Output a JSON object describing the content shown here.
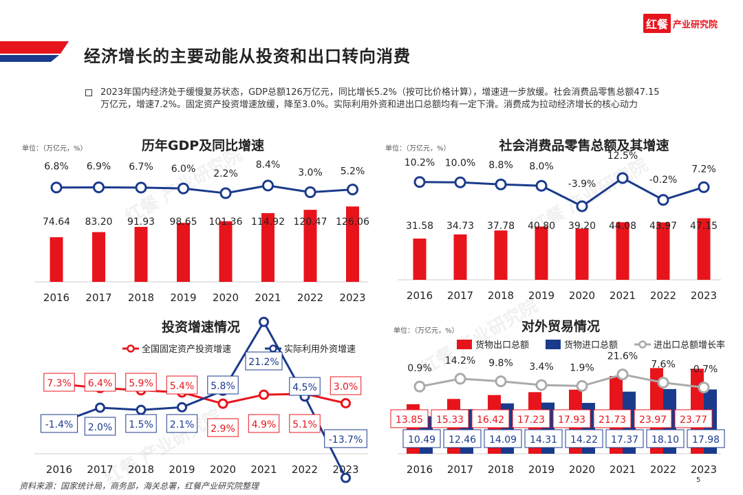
{
  "page": {
    "title": "经济增长的主要动能从投资和出口转向消费",
    "logo_mark": "红餐",
    "logo_name": "产业研究院",
    "summary": "2023年国内经济处于缓慢复苏状态，GDP总额126万亿元，同比增长5.2%（按可比价格计算），增速进一步放缓。社会消费品零售总额47.15万亿元，增速7.2%。固定资产投资增速放缓，降至3.0%。实际利用外资和进出口总额均有一定下滑。消费成为拉动经济增长的核心动力",
    "source": "资料来源：国家统计局，商务部，海关总署，红餐产业研究院整理",
    "page_number": "5",
    "watermark": "红餐 产业研究院"
  },
  "colors": {
    "red": "#e8141c",
    "navy": "#1a3a8c",
    "gray": "#aaaaaa",
    "text": "#222222",
    "axis": "#cccccc"
  },
  "chart_data": [
    {
      "id": "gdp",
      "type": "bar+line",
      "title": "历年GDP及同比增速",
      "unit": "单位：（万亿元，%）",
      "categories": [
        "2016",
        "2017",
        "2018",
        "2019",
        "2020",
        "2021",
        "2022",
        "2023"
      ],
      "series": [
        {
          "values": [
            74.64,
            83.2,
            91.93,
            98.65,
            101.36,
            114.92,
            120.47,
            126.06
          ],
          "labels": [
            "74.64",
            "83.20",
            "91.93",
            "98.65",
            "101.36",
            "114.92",
            "120.47",
            "126.06"
          ],
          "color": "#e8141c"
        },
        {
          "values": [
            6.8,
            6.9,
            6.7,
            6.0,
            2.2,
            8.4,
            3.0,
            5.2
          ],
          "labels": [
            "6.8%",
            "6.9%",
            "6.7%",
            "6.0%",
            "2.2%",
            "8.4%",
            "3.0%",
            "5.2%"
          ],
          "color": "#1a3a8c"
        }
      ]
    },
    {
      "id": "retail",
      "type": "bar+line",
      "title": "社会消费品零售总额及其增速",
      "unit": "单位：（万亿元，%）",
      "categories": [
        "2016",
        "2017",
        "2018",
        "2019",
        "2020",
        "2021",
        "2022",
        "2023"
      ],
      "series": [
        {
          "values": [
            31.58,
            34.73,
            37.78,
            40.8,
            39.2,
            44.08,
            43.97,
            47.15
          ],
          "labels": [
            "31.58",
            "34.73",
            "37.78",
            "40.80",
            "39.20",
            "44.08",
            "43.97",
            "47.15"
          ],
          "color": "#e8141c"
        },
        {
          "values": [
            10.2,
            10.0,
            8.8,
            8.0,
            -3.9,
            12.5,
            -0.2,
            7.2
          ],
          "labels": [
            "10.2%",
            "10.0%",
            "8.8%",
            "8.0%",
            "-3.9%",
            "12.5%",
            "-0.2%",
            "7.2%"
          ],
          "color": "#1a3a8c"
        }
      ]
    },
    {
      "id": "investment",
      "type": "line",
      "title": "投资增速情况",
      "categories": [
        "2016",
        "2017",
        "2018",
        "2019",
        "2020",
        "2021",
        "2022",
        "2023"
      ],
      "series": [
        {
          "name": "全国固定资产投资增速",
          "values": [
            7.3,
            6.4,
            5.9,
            5.4,
            2.9,
            4.9,
            5.1,
            3.0
          ],
          "labels": [
            "7.3%",
            "6.4%",
            "5.9%",
            "5.4%",
            "2.9%",
            "4.9%",
            "5.1%",
            "3.0%"
          ],
          "color": "#e8141c"
        },
        {
          "name": "实际利用外资增速",
          "values": [
            -1.4,
            2.0,
            1.5,
            2.1,
            5.8,
            21.2,
            4.5,
            -13.7
          ],
          "labels": [
            "-1.4%",
            "2.0%",
            "1.5%",
            "2.1%",
            "5.8%",
            "21.2%",
            "4.5%",
            "-13.7%"
          ],
          "color": "#1a3a8c"
        }
      ]
    },
    {
      "id": "trade",
      "type": "bar+line",
      "title": "对外贸易情况",
      "unit": "单位：（万亿元，%）",
      "categories": [
        "2016",
        "2017",
        "2018",
        "2019",
        "2020",
        "2021",
        "2022",
        "2023"
      ],
      "series": [
        {
          "name": "货物出口总额",
          "values": [
            13.85,
            15.33,
            16.42,
            17.23,
            17.93,
            21.73,
            23.97,
            23.77
          ],
          "labels": [
            "13.85",
            "15.33",
            "16.42",
            "17.23",
            "17.93",
            "21.73",
            "23.97",
            "23.77"
          ],
          "color": "#e8141c"
        },
        {
          "name": "货物进口总额",
          "values": [
            10.49,
            12.46,
            14.09,
            14.31,
            14.22,
            17.37,
            18.1,
            17.98
          ],
          "labels": [
            "10.49",
            "12.46",
            "14.09",
            "14.31",
            "14.22",
            "17.37",
            "18.10",
            "17.98"
          ],
          "color": "#1a3a8c"
        },
        {
          "name": "进出口总额增长率",
          "values": [
            0.9,
            14.2,
            9.8,
            3.4,
            1.9,
            21.6,
            7.6,
            -0.7
          ],
          "labels": [
            "0.9%",
            "14.2%",
            "9.8%",
            "3.4%",
            "1.9%",
            "21.6%",
            "7.6%",
            "-0.7%"
          ],
          "color": "#aaaaaa"
        }
      ]
    }
  ]
}
